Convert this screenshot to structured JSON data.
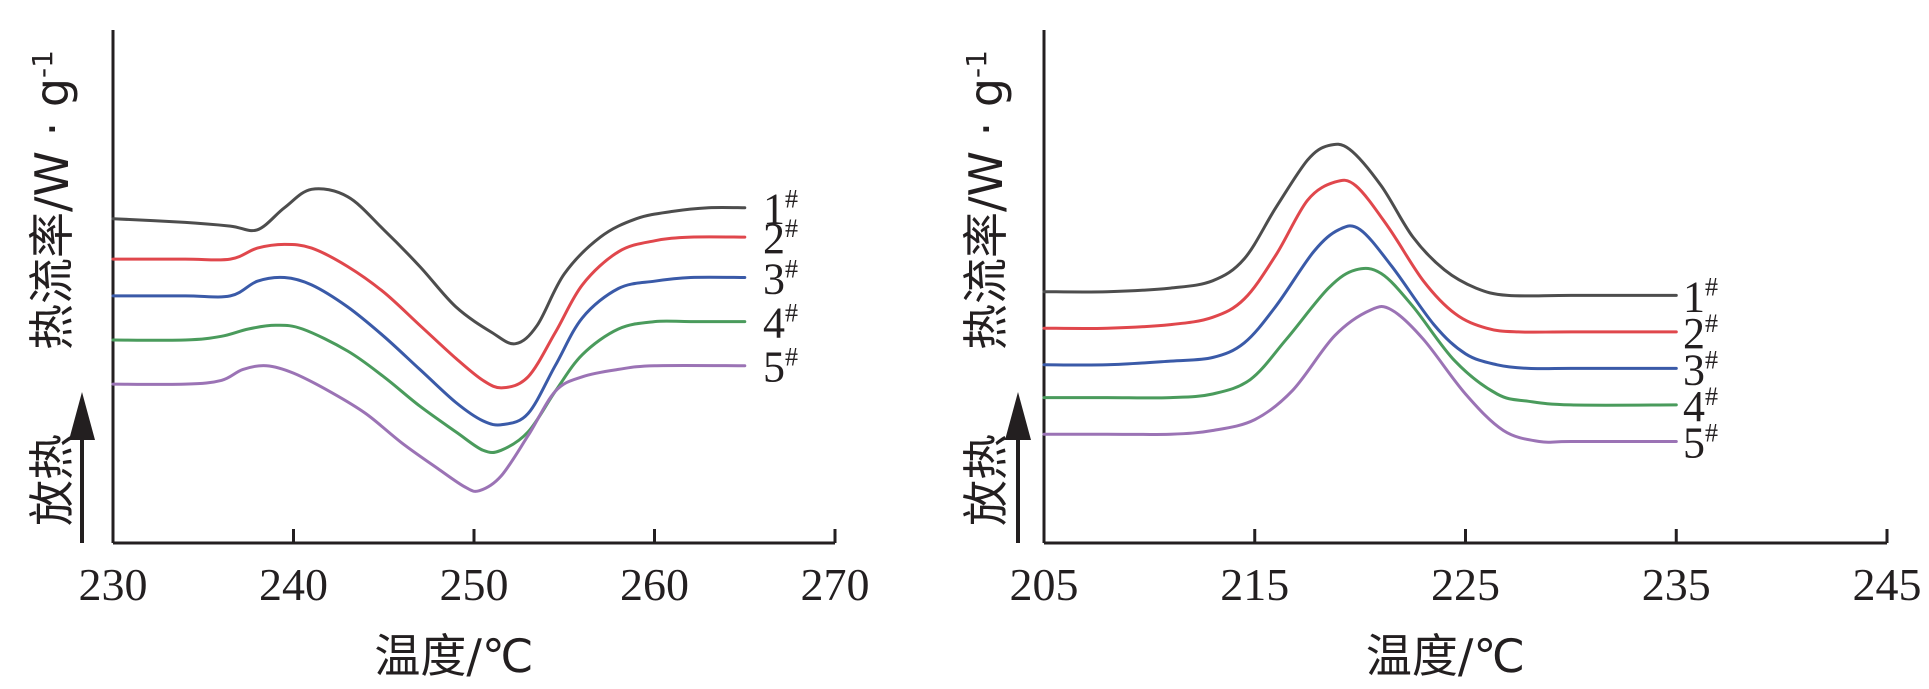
{
  "chart_data": [
    {
      "type": "line",
      "xlabel": "温度/℃",
      "ylabel": "热流率/W · g",
      "ylabel_superscript": "-1",
      "exo_label": "放热",
      "xlim": [
        230,
        270
      ],
      "xticks": [
        "230",
        "240",
        "250",
        "260",
        "270"
      ],
      "x_end": 265,
      "line_color": "#231f20",
      "series": [
        {
          "name": "1",
          "suffix": "#",
          "color": "#4d4d4d",
          "points": [
            [
              230,
              0.73
            ],
            [
              234,
              0.72
            ],
            [
              236.5,
              0.71
            ],
            [
              238,
              0.7
            ],
            [
              239.5,
              0.76
            ],
            [
              241,
              0.81
            ],
            [
              243,
              0.79
            ],
            [
              245,
              0.7
            ],
            [
              247,
              0.6
            ],
            [
              249,
              0.49
            ],
            [
              251,
              0.42
            ],
            [
              252.3,
              0.39
            ],
            [
              253.5,
              0.44
            ],
            [
              255,
              0.58
            ],
            [
              257,
              0.68
            ],
            [
              259,
              0.73
            ],
            [
              261,
              0.75
            ],
            [
              263,
              0.76
            ],
            [
              265,
              0.76
            ]
          ]
        },
        {
          "name": "2",
          "suffix": "#",
          "color": "#e0474c",
          "points": [
            [
              230,
              0.62
            ],
            [
              234,
              0.62
            ],
            [
              236.5,
              0.62
            ],
            [
              238,
              0.65
            ],
            [
              239.5,
              0.66
            ],
            [
              241,
              0.65
            ],
            [
              243,
              0.6
            ],
            [
              245,
              0.53
            ],
            [
              247,
              0.44
            ],
            [
              249,
              0.35
            ],
            [
              250.5,
              0.29
            ],
            [
              251.6,
              0.27
            ],
            [
              253,
              0.3
            ],
            [
              254.5,
              0.42
            ],
            [
              256,
              0.55
            ],
            [
              258,
              0.64
            ],
            [
              260,
              0.67
            ],
            [
              262,
              0.68
            ],
            [
              265,
              0.68
            ]
          ]
        },
        {
          "name": "3",
          "suffix": "#",
          "color": "#3a5aa8",
          "points": [
            [
              230,
              0.52
            ],
            [
              234,
              0.52
            ],
            [
              236.5,
              0.52
            ],
            [
              238,
              0.56
            ],
            [
              239.5,
              0.57
            ],
            [
              241,
              0.55
            ],
            [
              243,
              0.49
            ],
            [
              245,
              0.41
            ],
            [
              247,
              0.32
            ],
            [
              249,
              0.23
            ],
            [
              250.5,
              0.18
            ],
            [
              251.6,
              0.17
            ],
            [
              253,
              0.2
            ],
            [
              254.5,
              0.33
            ],
            [
              256,
              0.46
            ],
            [
              258,
              0.54
            ],
            [
              260,
              0.56
            ],
            [
              262,
              0.57
            ],
            [
              265,
              0.57
            ]
          ]
        },
        {
          "name": "4",
          "suffix": "#",
          "color": "#4a9b5c",
          "points": [
            [
              230,
              0.4
            ],
            [
              234,
              0.4
            ],
            [
              236,
              0.41
            ],
            [
              237.5,
              0.43
            ],
            [
              239,
              0.44
            ],
            [
              240.5,
              0.43
            ],
            [
              243,
              0.37
            ],
            [
              245,
              0.3
            ],
            [
              247,
              0.22
            ],
            [
              249,
              0.15
            ],
            [
              250.5,
              0.1
            ],
            [
              251.5,
              0.1
            ],
            [
              253,
              0.15
            ],
            [
              254.5,
              0.26
            ],
            [
              256,
              0.36
            ],
            [
              258,
              0.43
            ],
            [
              260,
              0.45
            ],
            [
              262,
              0.45
            ],
            [
              265,
              0.45
            ]
          ]
        },
        {
          "name": "5",
          "suffix": "#",
          "color": "#9b73b5",
          "points": [
            [
              230,
              0.28
            ],
            [
              234,
              0.28
            ],
            [
              236,
              0.29
            ],
            [
              237.2,
              0.32
            ],
            [
              238.5,
              0.33
            ],
            [
              240,
              0.31
            ],
            [
              242,
              0.26
            ],
            [
              244,
              0.2
            ],
            [
              246,
              0.12
            ],
            [
              248,
              0.05
            ],
            [
              249.5,
              0.0
            ],
            [
              250.3,
              -0.01
            ],
            [
              251.5,
              0.03
            ],
            [
              253,
              0.14
            ],
            [
              254.5,
              0.26
            ],
            [
              256,
              0.3
            ],
            [
              258,
              0.32
            ],
            [
              260,
              0.33
            ],
            [
              265,
              0.33
            ]
          ]
        }
      ]
    },
    {
      "type": "line",
      "xlabel": "温度/℃",
      "ylabel": "热流率/W · g",
      "ylabel_superscript": "-1",
      "exo_label": "放热",
      "xlim": [
        205,
        245
      ],
      "xticks": [
        "205",
        "215",
        "225",
        "235",
        "245"
      ],
      "x_end": 235,
      "line_color": "#231f20",
      "series": [
        {
          "name": "1",
          "suffix": "#",
          "color": "#4d4d4d",
          "points": [
            [
              205,
              0.51
            ],
            [
              208,
              0.51
            ],
            [
              211,
              0.52
            ],
            [
              213,
              0.54
            ],
            [
              214.5,
              0.6
            ],
            [
              216,
              0.74
            ],
            [
              217.5,
              0.87
            ],
            [
              218.5,
              0.91
            ],
            [
              219.5,
              0.9
            ],
            [
              221,
              0.8
            ],
            [
              222.5,
              0.66
            ],
            [
              224,
              0.57
            ],
            [
              225.5,
              0.52
            ],
            [
              227,
              0.5
            ],
            [
              230,
              0.5
            ],
            [
              235,
              0.5
            ]
          ]
        },
        {
          "name": "2",
          "suffix": "#",
          "color": "#e0474c",
          "points": [
            [
              205,
              0.41
            ],
            [
              208,
              0.41
            ],
            [
              211,
              0.42
            ],
            [
              213,
              0.44
            ],
            [
              214.5,
              0.49
            ],
            [
              216,
              0.61
            ],
            [
              217.5,
              0.76
            ],
            [
              218.8,
              0.81
            ],
            [
              219.8,
              0.8
            ],
            [
              221.3,
              0.69
            ],
            [
              223,
              0.54
            ],
            [
              224.5,
              0.45
            ],
            [
              226,
              0.41
            ],
            [
              227.5,
              0.4
            ],
            [
              230,
              0.4
            ],
            [
              235,
              0.4
            ]
          ]
        },
        {
          "name": "3",
          "suffix": "#",
          "color": "#3a5aa8",
          "points": [
            [
              205,
              0.31
            ],
            [
              208,
              0.31
            ],
            [
              211,
              0.32
            ],
            [
              213,
              0.33
            ],
            [
              214.5,
              0.37
            ],
            [
              216,
              0.47
            ],
            [
              217.8,
              0.62
            ],
            [
              219,
              0.68
            ],
            [
              220,
              0.68
            ],
            [
              221.5,
              0.58
            ],
            [
              223.5,
              0.42
            ],
            [
              225,
              0.34
            ],
            [
              226.5,
              0.31
            ],
            [
              228,
              0.3
            ],
            [
              230,
              0.3
            ],
            [
              235,
              0.3
            ]
          ]
        },
        {
          "name": "4",
          "suffix": "#",
          "color": "#4a9b5c",
          "points": [
            [
              205,
              0.22
            ],
            [
              208,
              0.22
            ],
            [
              211,
              0.22
            ],
            [
              213,
              0.23
            ],
            [
              214.8,
              0.27
            ],
            [
              216.5,
              0.38
            ],
            [
              218.5,
              0.52
            ],
            [
              219.8,
              0.57
            ],
            [
              221,
              0.56
            ],
            [
              222.5,
              0.47
            ],
            [
              224.5,
              0.32
            ],
            [
              226.5,
              0.23
            ],
            [
              228,
              0.21
            ],
            [
              230,
              0.2
            ],
            [
              235,
              0.2
            ]
          ]
        },
        {
          "name": "5",
          "suffix": "#",
          "color": "#9b73b5",
          "points": [
            [
              205,
              0.12
            ],
            [
              208,
              0.12
            ],
            [
              211,
              0.12
            ],
            [
              213,
              0.13
            ],
            [
              215,
              0.16
            ],
            [
              216.8,
              0.24
            ],
            [
              218.8,
              0.39
            ],
            [
              220.5,
              0.46
            ],
            [
              221.5,
              0.46
            ],
            [
              223,
              0.38
            ],
            [
              225,
              0.23
            ],
            [
              226.8,
              0.13
            ],
            [
              228.5,
              0.1
            ],
            [
              230,
              0.1
            ],
            [
              235,
              0.1
            ]
          ]
        }
      ]
    }
  ]
}
